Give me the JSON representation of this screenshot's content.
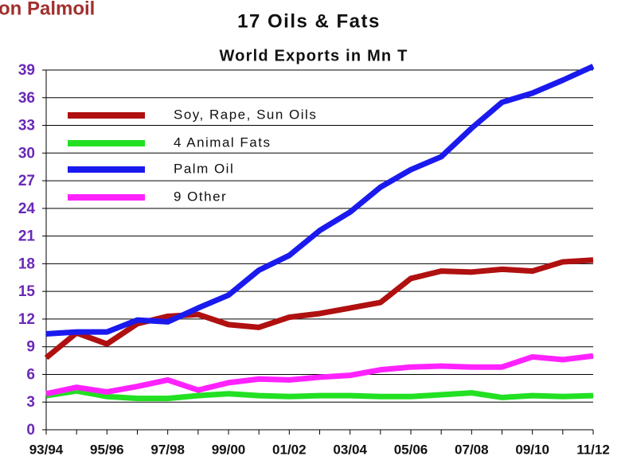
{
  "chart_data": {
    "type": "line",
    "title": "17 Oils & Fats",
    "subtitle": "World Exports in Mn T",
    "annotations": [
      "on Palmoil"
    ],
    "categories": [
      "93/94",
      null,
      "95/96",
      null,
      "97/98",
      null,
      "99/00",
      null,
      "01/02",
      null,
      "03/04",
      null,
      "05/06",
      null,
      "07/08",
      null,
      "09/10",
      null,
      "11/12"
    ],
    "ylim": [
      0,
      39
    ],
    "yticks": [
      0,
      3,
      6,
      9,
      12,
      15,
      18,
      21,
      24,
      27,
      30,
      33,
      36,
      39
    ],
    "grid": true,
    "legend": "upper left",
    "series": [
      {
        "name": "Soy, Rape, Sun Oils",
        "color": "#b01010",
        "values": [
          7.8,
          10.5,
          9.3,
          11.5,
          12.3,
          12.5,
          11.4,
          11.1,
          12.2,
          12.6,
          13.2,
          13.8,
          16.4,
          17.2,
          17.1,
          17.4,
          17.2,
          18.2,
          18.4
        ]
      },
      {
        "name": "4 Animal Fats",
        "color": "#22e022",
        "values": [
          3.7,
          4.2,
          3.6,
          3.4,
          3.4,
          3.7,
          3.9,
          3.7,
          3.6,
          3.7,
          3.7,
          3.6,
          3.6,
          3.8,
          4.0,
          3.5,
          3.7,
          3.6,
          3.7
        ]
      },
      {
        "name": "Palm Oil",
        "color": "#1a1aee",
        "values": [
          10.4,
          10.6,
          10.6,
          11.9,
          11.7,
          13.2,
          14.6,
          17.3,
          18.9,
          21.6,
          23.6,
          26.3,
          28.2,
          29.6,
          32.7,
          35.5,
          36.5,
          37.9,
          39.4
        ]
      },
      {
        "name": "9 Other",
        "color": "#ff22ff",
        "values": [
          3.9,
          4.6,
          4.1,
          4.7,
          5.4,
          4.3,
          5.1,
          5.5,
          5.4,
          5.7,
          5.9,
          6.5,
          6.8,
          6.9,
          6.8,
          6.8,
          7.9,
          7.6,
          8.0
        ]
      }
    ]
  }
}
